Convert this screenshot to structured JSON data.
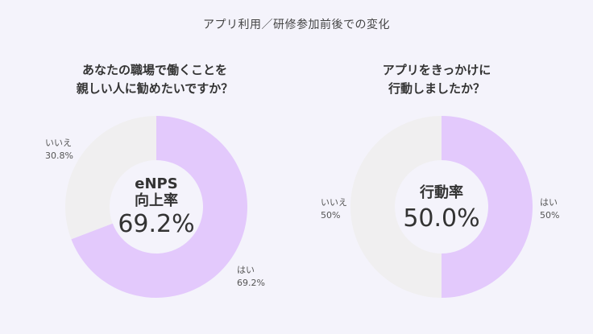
{
  "page_title": "アプリ利用／研修参加前後での変化",
  "colors": {
    "yes": "#e3c9fc",
    "no": "#f0eff0",
    "background": "#f4f3fb",
    "center": "#f4f3fb"
  },
  "chart_data": [
    {
      "type": "pie",
      "title_lines": [
        "あなたの職場で働くことを",
        "親しい人に勧めたいですか？"
      ],
      "center_label_lines": [
        "eNPS",
        "向上率"
      ],
      "center_value": "69.2%",
      "slices": [
        {
          "label": "はい",
          "value": 69.2,
          "value_text": "69.2%"
        },
        {
          "label": "いいえ",
          "value": 30.8,
          "value_text": "30.8%"
        }
      ]
    },
    {
      "type": "pie",
      "title_lines": [
        "アプリをきっかけに",
        "行動しましたか？"
      ],
      "center_label_lines": [
        "行動率"
      ],
      "center_value": "50.0%",
      "slices": [
        {
          "label": "はい",
          "value": 50,
          "value_text": "50%"
        },
        {
          "label": "いいえ",
          "value": 50,
          "value_text": "50%"
        }
      ]
    }
  ]
}
